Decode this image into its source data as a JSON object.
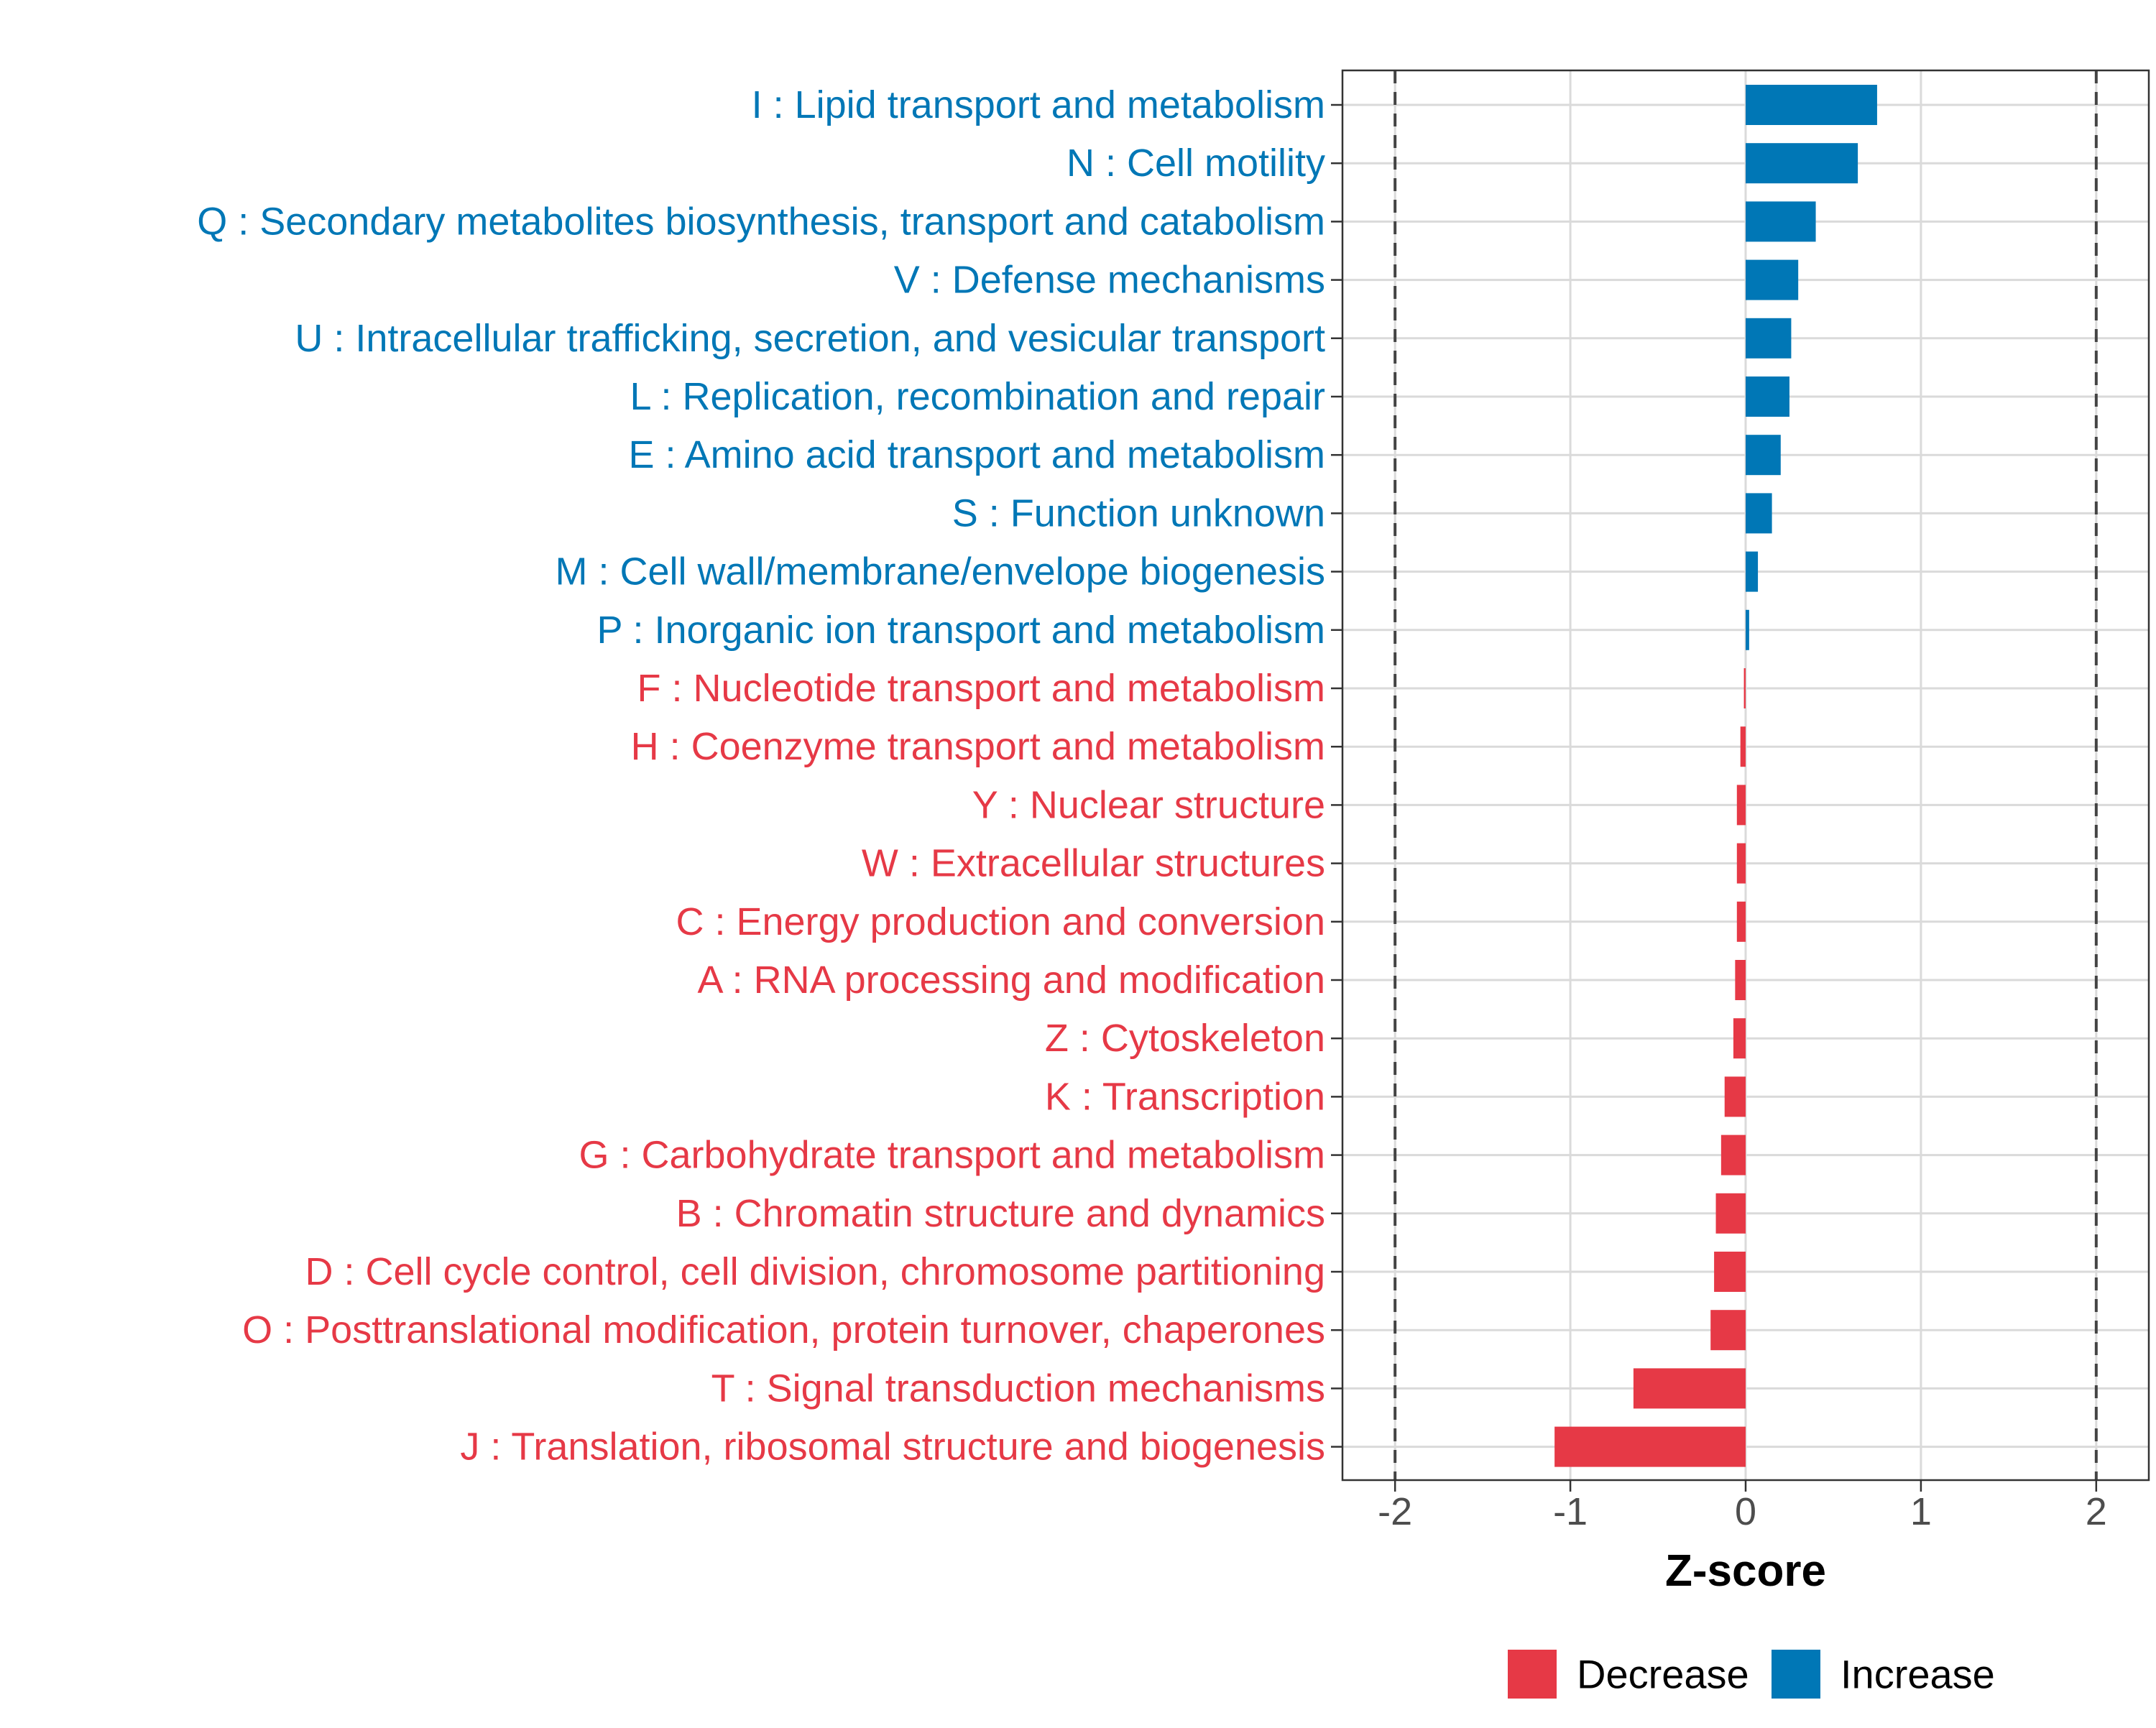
{
  "chart_data": {
    "type": "bar",
    "orientation": "horizontal",
    "title": "",
    "xlabel": "Z-score",
    "ylabel": "",
    "xlim": [
      -2.3,
      2.3
    ],
    "xticks": [
      -2,
      -1,
      0,
      1,
      2
    ],
    "xtick_labels": [
      "-2",
      "-1",
      "0",
      "1",
      "2"
    ],
    "reference_lines": [
      -2,
      2
    ],
    "grid": true,
    "legend_position": "bottom",
    "legend": [
      {
        "key": "Decrease",
        "label": "Decrease",
        "color": "#E63946"
      },
      {
        "key": "Increase",
        "label": "Increase",
        "color": "#0077B6"
      }
    ],
    "categories": [
      {
        "label": "I : Lipid transport and metabolism",
        "value": 0.75,
        "group": "Increase"
      },
      {
        "label": "N : Cell motility",
        "value": 0.64,
        "group": "Increase"
      },
      {
        "label": "Q : Secondary metabolites biosynthesis, transport and catabolism",
        "value": 0.4,
        "group": "Increase"
      },
      {
        "label": "V : Defense mechanisms",
        "value": 0.3,
        "group": "Increase"
      },
      {
        "label": "U : Intracellular trafficking, secretion, and vesicular transport",
        "value": 0.26,
        "group": "Increase"
      },
      {
        "label": "L : Replication, recombination and repair",
        "value": 0.25,
        "group": "Increase"
      },
      {
        "label": "E : Amino acid transport and metabolism",
        "value": 0.2,
        "group": "Increase"
      },
      {
        "label": "S : Function unknown",
        "value": 0.15,
        "group": "Increase"
      },
      {
        "label": "M : Cell wall/membrane/envelope biogenesis",
        "value": 0.07,
        "group": "Increase"
      },
      {
        "label": "P : Inorganic ion transport and metabolism",
        "value": 0.02,
        "group": "Increase"
      },
      {
        "label": "F : Nucleotide transport and metabolism",
        "value": -0.01,
        "group": "Decrease"
      },
      {
        "label": "H : Coenzyme transport and metabolism",
        "value": -0.03,
        "group": "Decrease"
      },
      {
        "label": "Y : Nuclear structure",
        "value": -0.05,
        "group": "Decrease"
      },
      {
        "label": "W : Extracellular structures",
        "value": -0.05,
        "group": "Decrease"
      },
      {
        "label": "C : Energy production and conversion",
        "value": -0.05,
        "group": "Decrease"
      },
      {
        "label": "A : RNA processing and modification",
        "value": -0.06,
        "group": "Decrease"
      },
      {
        "label": "Z : Cytoskeleton",
        "value": -0.07,
        "group": "Decrease"
      },
      {
        "label": "K : Transcription",
        "value": -0.12,
        "group": "Decrease"
      },
      {
        "label": "G : Carbohydrate transport and metabolism",
        "value": -0.14,
        "group": "Decrease"
      },
      {
        "label": "B : Chromatin structure and dynamics",
        "value": -0.17,
        "group": "Decrease"
      },
      {
        "label": "D : Cell cycle control, cell division, chromosome partitioning",
        "value": -0.18,
        "group": "Decrease"
      },
      {
        "label": "O : Posttranslational modification, protein turnover, chaperones",
        "value": -0.2,
        "group": "Decrease"
      },
      {
        "label": "T : Signal transduction mechanisms",
        "value": -0.64,
        "group": "Decrease"
      },
      {
        "label": "J : Translation, ribosomal structure and biogenesis",
        "value": -1.09,
        "group": "Decrease"
      }
    ]
  }
}
